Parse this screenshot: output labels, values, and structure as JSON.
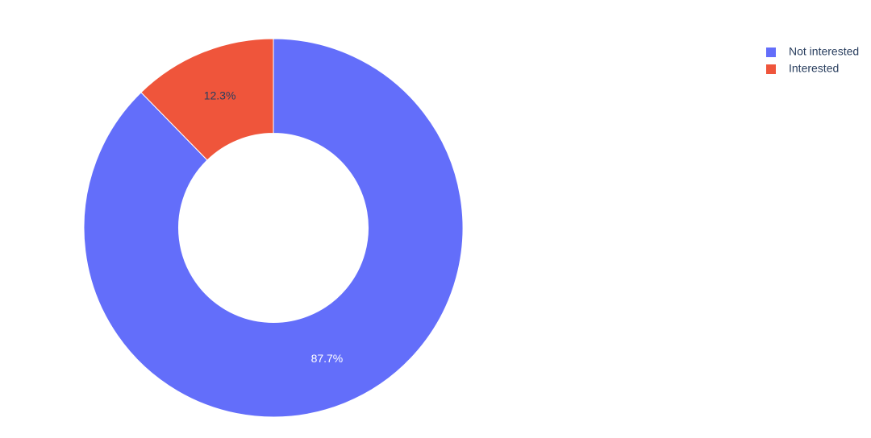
{
  "chart_data": {
    "type": "pie",
    "hole": 0.5,
    "categories": [
      "Not interested",
      "Interested"
    ],
    "values": [
      87.7,
      12.3
    ],
    "value_labels": [
      "87.7%",
      "12.3%"
    ],
    "colors": [
      "#636efa",
      "#ef553b"
    ],
    "legend": "top-right"
  }
}
